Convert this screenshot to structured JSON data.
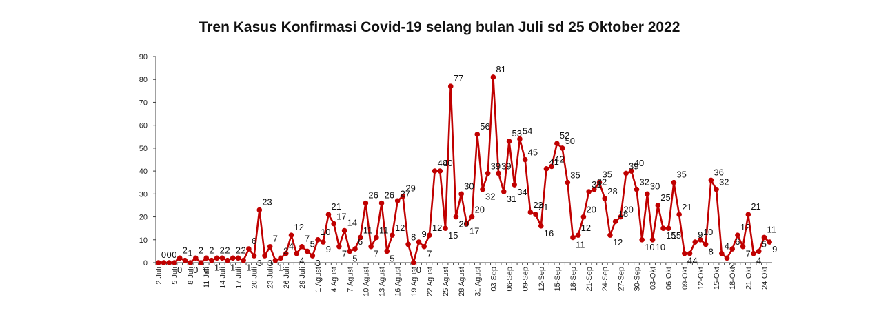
{
  "chart_data": {
    "type": "line",
    "title": "Tren Kasus Konfirmasi Covid-19 selang bulan Juli  sd  25 Oktober 2022",
    "xlabel": "",
    "ylabel": "",
    "ylim": [
      0,
      90
    ],
    "yticks": [
      "0",
      "10",
      "20",
      "30",
      "40",
      "50",
      "60",
      "70",
      "80",
      "90"
    ],
    "grid": false,
    "legend": "none",
    "colors": {
      "series": "#c00000",
      "axis": "#404040"
    },
    "x": [
      "2 Juli",
      "3 Juli",
      "4 Juli",
      "5 Juli",
      "6 Juli",
      "7 Juli",
      "8 Juli",
      "9 Juli",
      "10 Juli",
      "11 Juli",
      "12 Juli",
      "13 Juli",
      "14 Juli",
      "15 Juli",
      "16 Juli",
      "17 Juli",
      "18 Juli",
      "19 Juli",
      "20 Juli",
      "21 Juli",
      "22 Juli",
      "23 Juli",
      "24 Juli",
      "25 Juli",
      "26 Juli",
      "27 Juli",
      "28 Juli",
      "29 Juli",
      "30 Juli",
      "31 Juli",
      "1 Agust",
      "2 Agust",
      "3 Agust",
      "4 Agust",
      "5 Agust",
      "6 Agust",
      "7 Agust",
      "8 Agust",
      "9 Agust",
      "10 Agust",
      "11 Agust",
      "12 Agust",
      "13 Agust",
      "14 Agust",
      "15 Agust",
      "16 Agust",
      "17 Agust",
      "18 Agust",
      "19 Agust",
      "20 Agust",
      "21 Agust",
      "22 Agust",
      "23 Agust",
      "24 Agust",
      "25 Agust",
      "26 Agust",
      "27 Agust",
      "28 Agust",
      "29 Agust",
      "30 Agust",
      "31 Agust",
      "01-Sep",
      "02-Sep",
      "03-Sep",
      "04-Sep",
      "05-Sep",
      "06-Sep",
      "07-Sep",
      "08-Sep",
      "09-Sep",
      "10-Sep",
      "11-Sep",
      "12-Sep",
      "13-Sep",
      "14-Sep",
      "15-Sep",
      "16-Sep",
      "17-Sep",
      "18-Sep",
      "19-Sep",
      "20-Sep",
      "21-Sep",
      "22-Sep",
      "23-Sep",
      "24-Sep",
      "25-Sep",
      "26-Sep",
      "27-Sep",
      "28-Sep",
      "29-Sep",
      "30-Sep",
      "01-Okt",
      "02-Okt",
      "03-Okt",
      "04-Okt",
      "05-Okt",
      "06-Okt",
      "07-Okt",
      "08-Okt",
      "09-Okt",
      "10-Okt",
      "11-Okt",
      "12-Okt",
      "13-Okt",
      "14-Okt",
      "15-Okt",
      "16-Okt",
      "17-Okt",
      "18-Okt",
      "19-Okt",
      "20-Okt",
      "21-Okt",
      "22-Okt",
      "23-Okt",
      "24-Okt",
      "25-Okt"
    ],
    "x_tick_labels": [
      "2 Juli",
      "5 Juli",
      "8 Juli",
      "11 Juli",
      "14 Juli",
      "17 Juli",
      "20 Juli",
      "23 Juli",
      "26 Juli",
      "29 Juli",
      "1 Agust",
      "4 Agust",
      "7 Agust",
      "10 Agust",
      "13 Agust",
      "16 Agust",
      "19 Agust",
      "22 Agust",
      "25 Agust",
      "28 Agust",
      "31 Agust",
      "03-Sep",
      "06-Sep",
      "09-Sep",
      "12-Sep",
      "15-Sep",
      "18-Sep",
      "21-Sep",
      "24-Sep",
      "27-Sep",
      "30-Sep",
      "03-Okt",
      "06-Okt",
      "09-Okt",
      "12-Okt",
      "15-Okt",
      "18-Okt",
      "21-Okt",
      "24-Okt"
    ],
    "series": [
      {
        "values": [
          0,
          0,
          0,
          0,
          2,
          1,
          0,
          2,
          0,
          2,
          1,
          2,
          2,
          1,
          2,
          2,
          1,
          6,
          3,
          23,
          3,
          7,
          1,
          2,
          4,
          12,
          4,
          7,
          5,
          3,
          10,
          9,
          21,
          17,
          7,
          14,
          5,
          6,
          11,
          26,
          7,
          11,
          26,
          5,
          12,
          27,
          29,
          8,
          0,
          9,
          7,
          12,
          40,
          40,
          15,
          77,
          20,
          30,
          17,
          20,
          56,
          32,
          39,
          81,
          39,
          31,
          53,
          34,
          54,
          45,
          22,
          21,
          16,
          41,
          42,
          52,
          50,
          35,
          11,
          12,
          20,
          31,
          32,
          35,
          28,
          12,
          18,
          20,
          39,
          40,
          32,
          10,
          30,
          10,
          25,
          15,
          15,
          35,
          21,
          4,
          4,
          9,
          10,
          8,
          36,
          32,
          4,
          2,
          6,
          12,
          7,
          21,
          4,
          5,
          11,
          9
        ]
      }
    ],
    "data_labels": [
      "0",
      "0",
      "0",
      "0",
      "2",
      "1",
      "0",
      "2",
      "0",
      "2",
      "1",
      "2",
      "2",
      "1",
      "2",
      "2",
      "1",
      "6",
      "3",
      "23",
      "3",
      "7",
      "1",
      "2",
      "4",
      "12",
      "4",
      "7",
      "5",
      "3",
      "10",
      "9",
      "21",
      "17",
      "7",
      "14",
      "5",
      "6",
      "11",
      "26",
      "7",
      "11",
      "26",
      "5",
      "12",
      "27",
      "29",
      "8",
      "0",
      "9",
      "7",
      "12",
      "40",
      "40",
      "15",
      "77",
      "20",
      "30",
      "17",
      "20",
      "56",
      "32",
      "39",
      "81",
      "39",
      "31",
      "53",
      "34",
      "54",
      "45",
      "22",
      "21",
      "16",
      "41",
      "42",
      "52",
      "50",
      "35",
      "11",
      "12",
      "20",
      "31",
      "32",
      "35",
      "28",
      "12",
      "18",
      "20",
      "39",
      "40",
      "32",
      "10",
      "30",
      "10",
      "25",
      "15",
      "15",
      "35",
      "21",
      "4",
      "4",
      "9",
      "10",
      "8",
      "36",
      "32",
      "4",
      "2",
      "6",
      "12",
      "7",
      "21",
      "4",
      "5",
      "11",
      "9"
    ]
  }
}
